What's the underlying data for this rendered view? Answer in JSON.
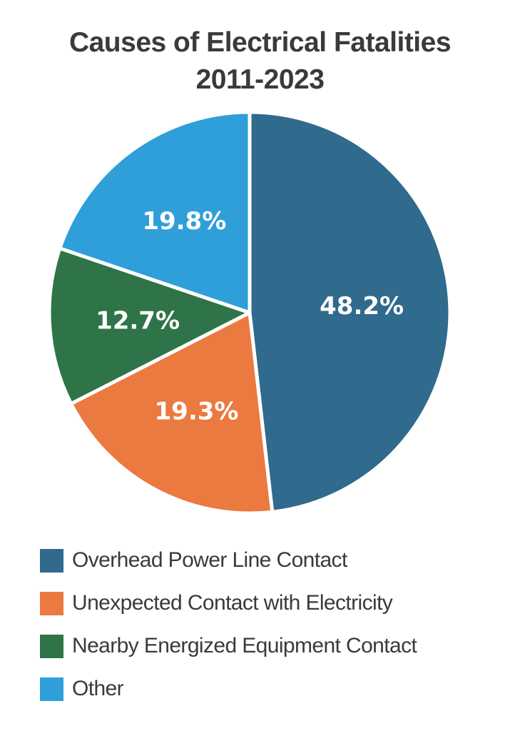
{
  "chart_data": {
    "type": "pie",
    "title": "Causes of Electrical Fatalities",
    "subtitle": "2011-2023",
    "slices": [
      {
        "label": "Overhead Power Line Contact",
        "value": 48.2,
        "display": "48.2%",
        "color": "#306a8c"
      },
      {
        "label": "Unexpected Contact with Electricity",
        "value": 19.3,
        "display": "19.3%",
        "color": "#eb7a40"
      },
      {
        "label": "Nearby Energized Equipment Contact",
        "value": 12.7,
        "display": "12.7%",
        "color": "#2f7448"
      },
      {
        "label": "Other",
        "value": 19.8,
        "display": "19.8%",
        "color": "#2e9fd9"
      }
    ],
    "legend_position": "bottom-left"
  }
}
